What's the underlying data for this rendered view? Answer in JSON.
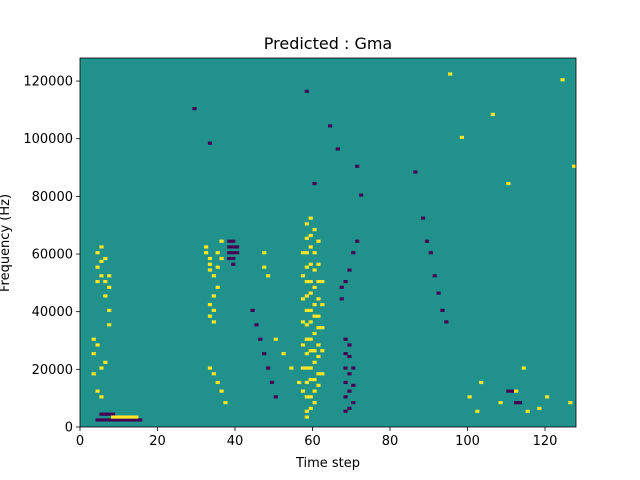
{
  "chart_data": {
    "type": "heatmap",
    "title": "Predicted : Gma",
    "xlabel": "Time step",
    "ylabel": "Frequency (Hz)",
    "xlim": [
      0,
      128
    ],
    "ylim": [
      0,
      128000
    ],
    "x_ticks": [
      0,
      20,
      40,
      60,
      80,
      100,
      120
    ],
    "y_ticks": [
      0,
      20000,
      40000,
      60000,
      80000,
      100000,
      120000
    ],
    "x_tick_labels": [
      "0",
      "20",
      "40",
      "60",
      "80",
      "100",
      "120"
    ],
    "y_tick_labels": [
      "0",
      "20000",
      "40000",
      "60000",
      "80000",
      "100000",
      "120000"
    ],
    "rows": 128,
    "cols": 128,
    "value_levels": [
      -1,
      0,
      1
    ],
    "colors": {
      "background": "#21918c",
      "high": "#fde725",
      "low": "#440154"
    },
    "cells_high": [
      [
        4,
        50
      ],
      [
        4,
        55
      ],
      [
        4,
        60
      ],
      [
        5,
        52
      ],
      [
        5,
        57
      ],
      [
        5,
        62
      ],
      [
        6,
        45
      ],
      [
        6,
        50
      ],
      [
        6,
        58
      ],
      [
        7,
        35
      ],
      [
        7,
        40
      ],
      [
        7,
        48
      ],
      [
        7,
        52
      ],
      [
        3,
        25
      ],
      [
        3,
        30
      ],
      [
        4,
        28
      ],
      [
        5,
        20
      ],
      [
        6,
        22
      ],
      [
        3,
        18
      ],
      [
        4,
        12
      ],
      [
        5,
        10
      ],
      [
        8,
        3
      ],
      [
        9,
        3
      ],
      [
        10,
        3
      ],
      [
        11,
        3
      ],
      [
        12,
        3
      ],
      [
        13,
        3
      ],
      [
        14,
        3
      ],
      [
        32,
        62
      ],
      [
        32,
        60
      ],
      [
        33,
        58
      ],
      [
        33,
        56
      ],
      [
        33,
        54
      ],
      [
        34,
        52
      ],
      [
        34,
        45
      ],
      [
        34,
        40
      ],
      [
        34,
        36
      ],
      [
        33,
        38
      ],
      [
        33,
        42
      ],
      [
        35,
        48
      ],
      [
        35,
        55
      ],
      [
        35,
        60
      ],
      [
        36,
        64
      ],
      [
        36,
        58
      ],
      [
        33,
        20
      ],
      [
        34,
        18
      ],
      [
        35,
        15
      ],
      [
        36,
        12
      ],
      [
        37,
        8
      ],
      [
        58,
        70
      ],
      [
        58,
        65
      ],
      [
        58,
        60
      ],
      [
        58,
        55
      ],
      [
        58,
        50
      ],
      [
        58,
        45
      ],
      [
        58,
        40
      ],
      [
        58,
        35
      ],
      [
        58,
        30
      ],
      [
        58,
        25
      ],
      [
        58,
        20
      ],
      [
        58,
        15
      ],
      [
        58,
        10
      ],
      [
        58,
        5
      ],
      [
        58,
        3
      ],
      [
        59,
        72
      ],
      [
        59,
        66
      ],
      [
        59,
        62
      ],
      [
        59,
        56
      ],
      [
        59,
        50
      ],
      [
        59,
        46
      ],
      [
        59,
        40
      ],
      [
        59,
        36
      ],
      [
        59,
        30
      ],
      [
        59,
        26
      ],
      [
        59,
        20
      ],
      [
        59,
        16
      ],
      [
        59,
        10
      ],
      [
        59,
        6
      ],
      [
        60,
        68
      ],
      [
        60,
        60
      ],
      [
        60,
        54
      ],
      [
        60,
        48
      ],
      [
        60,
        42
      ],
      [
        60,
        38
      ],
      [
        60,
        32
      ],
      [
        60,
        26
      ],
      [
        60,
        22
      ],
      [
        60,
        16
      ],
      [
        60,
        12
      ],
      [
        60,
        8
      ],
      [
        61,
        64
      ],
      [
        61,
        56
      ],
      [
        61,
        50
      ],
      [
        61,
        44
      ],
      [
        61,
        38
      ],
      [
        61,
        34
      ],
      [
        61,
        28
      ],
      [
        61,
        24
      ],
      [
        61,
        18
      ],
      [
        61,
        14
      ],
      [
        57,
        60
      ],
      [
        57,
        52
      ],
      [
        57,
        44
      ],
      [
        57,
        36
      ],
      [
        57,
        28
      ],
      [
        57,
        20
      ],
      [
        57,
        12
      ],
      [
        62,
        50
      ],
      [
        62,
        42
      ],
      [
        62,
        34
      ],
      [
        62,
        26
      ],
      [
        62,
        18
      ],
      [
        47,
        60
      ],
      [
        47,
        55
      ],
      [
        48,
        52
      ],
      [
        50,
        30
      ],
      [
        52,
        25
      ],
      [
        54,
        20
      ],
      [
        56,
        15
      ],
      [
        100,
        10
      ],
      [
        102,
        5
      ],
      [
        103,
        15
      ],
      [
        108,
        8
      ],
      [
        112,
        12
      ],
      [
        114,
        20
      ],
      [
        115,
        5
      ],
      [
        118,
        6
      ],
      [
        120,
        10
      ],
      [
        126,
        8
      ],
      [
        95,
        122
      ],
      [
        98,
        100
      ],
      [
        106,
        108
      ],
      [
        110,
        84
      ],
      [
        124,
        120
      ],
      [
        127,
        90
      ]
    ],
    "cells_low": [
      [
        4,
        2
      ],
      [
        5,
        2
      ],
      [
        6,
        2
      ],
      [
        7,
        2
      ],
      [
        8,
        2
      ],
      [
        9,
        2
      ],
      [
        10,
        2
      ],
      [
        11,
        2
      ],
      [
        12,
        2
      ],
      [
        13,
        2
      ],
      [
        14,
        2
      ],
      [
        15,
        2
      ],
      [
        5,
        4
      ],
      [
        6,
        4
      ],
      [
        7,
        4
      ],
      [
        8,
        4
      ],
      [
        38,
        58
      ],
      [
        38,
        60
      ],
      [
        38,
        62
      ],
      [
        38,
        64
      ],
      [
        39,
        56
      ],
      [
        39,
        58
      ],
      [
        39,
        60
      ],
      [
        39,
        62
      ],
      [
        39,
        64
      ],
      [
        40,
        60
      ],
      [
        40,
        62
      ],
      [
        68,
        5
      ],
      [
        68,
        10
      ],
      [
        68,
        15
      ],
      [
        68,
        20
      ],
      [
        68,
        25
      ],
      [
        68,
        30
      ],
      [
        69,
        6
      ],
      [
        69,
        12
      ],
      [
        69,
        18
      ],
      [
        69,
        24
      ],
      [
        69,
        28
      ],
      [
        70,
        8
      ],
      [
        70,
        14
      ],
      [
        70,
        20
      ],
      [
        67,
        44
      ],
      [
        67,
        48
      ],
      [
        68,
        50
      ],
      [
        69,
        54
      ],
      [
        70,
        60
      ],
      [
        71,
        64
      ],
      [
        44,
        40
      ],
      [
        45,
        35
      ],
      [
        46,
        30
      ],
      [
        47,
        25
      ],
      [
        48,
        20
      ],
      [
        49,
        15
      ],
      [
        50,
        10
      ],
      [
        29,
        110
      ],
      [
        33,
        98
      ],
      [
        58,
        116
      ],
      [
        60,
        84
      ],
      [
        64,
        104
      ],
      [
        66,
        96
      ],
      [
        71,
        90
      ],
      [
        72,
        80
      ],
      [
        86,
        88
      ],
      [
        88,
        72
      ],
      [
        89,
        64
      ],
      [
        90,
        60
      ],
      [
        91,
        52
      ],
      [
        92,
        46
      ],
      [
        93,
        40
      ],
      [
        94,
        36
      ],
      [
        110,
        12
      ],
      [
        111,
        12
      ],
      [
        112,
        8
      ],
      [
        113,
        8
      ]
    ]
  }
}
